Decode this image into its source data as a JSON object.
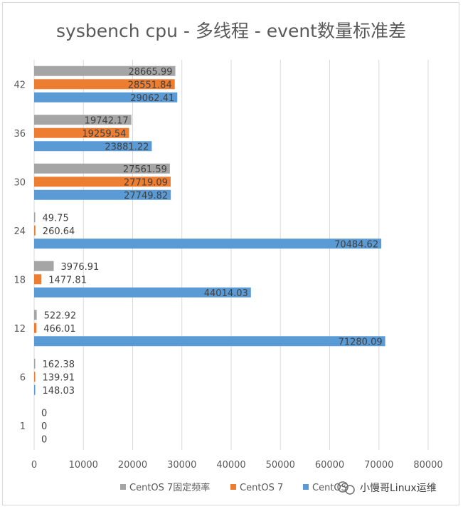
{
  "chart_data": {
    "type": "bar",
    "orientation": "horizontal",
    "title": "sysbench cpu - 多线程 - event数量标准差",
    "categories": [
      "1",
      "6",
      "12",
      "18",
      "24",
      "30",
      "36",
      "42"
    ],
    "series": [
      {
        "name": "CentOS 7固定频率",
        "color": "#a5a5a5",
        "values": [
          0,
          162.38,
          522.92,
          3976.91,
          49.75,
          27561.59,
          19742.17,
          28665.99
        ]
      },
      {
        "name": "CentOS 7",
        "color": "#ed7d31",
        "values": [
          0,
          139.91,
          466.01,
          1477.81,
          260.64,
          27719.09,
          19259.54,
          28551.84
        ]
      },
      {
        "name": "CentOS",
        "color": "#5b9bd5",
        "values": [
          0,
          148.03,
          71280.09,
          44014.03,
          70484.62,
          27749.82,
          23881.22,
          29062.41
        ]
      }
    ],
    "data_labels": [
      [
        "0",
        "162.38",
        "522.92",
        "3976.91",
        "49.75",
        "27561.59",
        "19742.17",
        "28665.99"
      ],
      [
        "0",
        "139.91",
        "466.01",
        "1477.81",
        "260.64",
        "27719.09",
        "19259.54",
        "28551.84"
      ],
      [
        "0",
        "148.03",
        "71280.09",
        "44014.03",
        "70484.62",
        "27749.82",
        "23881.22",
        "29062.41"
      ]
    ],
    "xlim": [
      0,
      80000
    ],
    "xticks": [
      "0",
      "10000",
      "20000",
      "30000",
      "40000",
      "50000",
      "60000",
      "70000",
      "80000"
    ],
    "grid": true,
    "legend_position": "bottom"
  },
  "watermark": {
    "text": "小慢哥Linux运维",
    "icon": "wechat-icon"
  }
}
